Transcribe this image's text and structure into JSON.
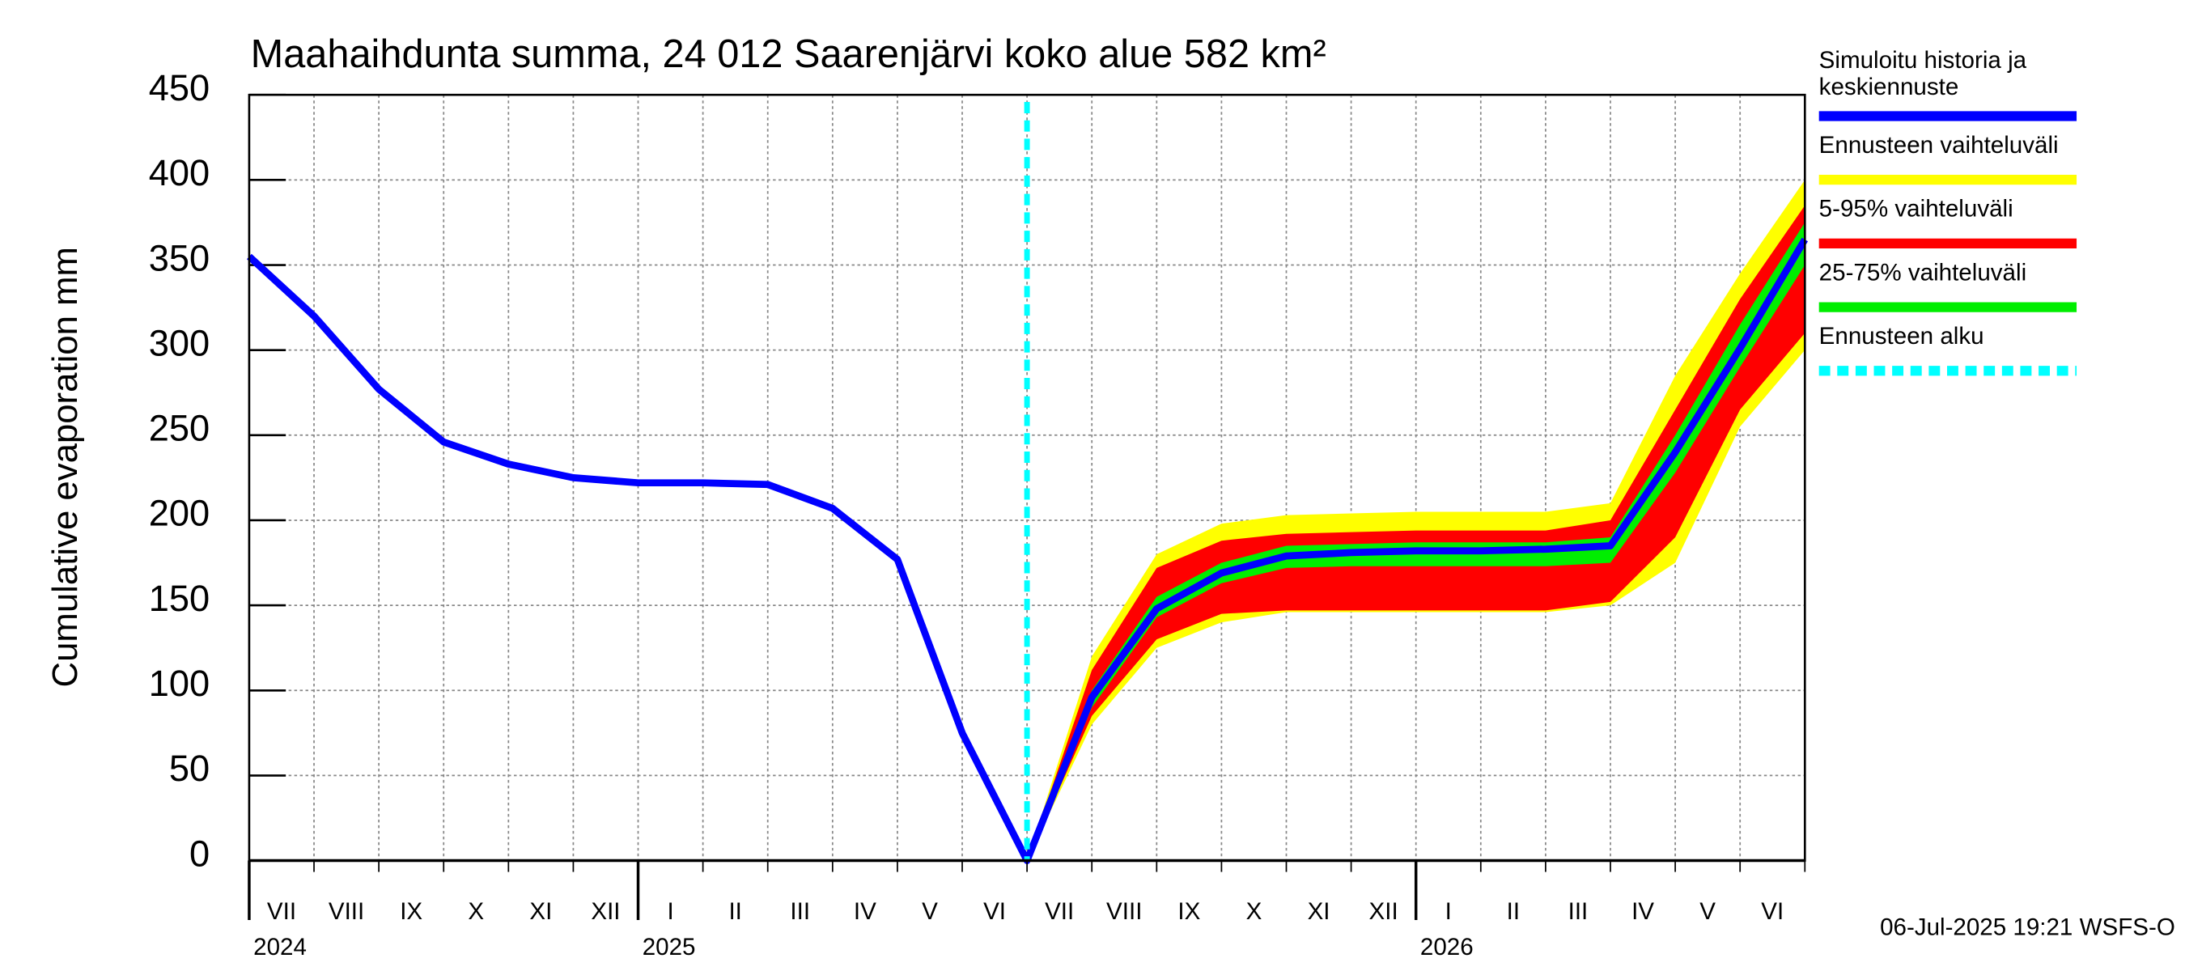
{
  "chart_data": {
    "type": "line",
    "title": "Maahaihdunta summa, 24 012 Saarenjärvi koko alue 582 km²",
    "y_label": "Cumulative evaporation   mm",
    "timestamp": "06-Jul-2025 19:21 WSFS-O",
    "x": [
      "2024-07",
      "2024-08",
      "2024-09",
      "2024-10",
      "2024-11",
      "2024-12",
      "2025-01",
      "2025-02",
      "2025-03",
      "2025-04",
      "2025-05",
      "2025-06",
      "2025-07",
      "2025-08",
      "2025-09",
      "2025-10",
      "2025-11",
      "2025-12",
      "2026-01",
      "2026-02",
      "2026-03",
      "2026-04",
      "2026-05",
      "2026-06",
      "2026-07"
    ],
    "xlim": [
      "2024-07",
      "2026-07"
    ],
    "month_labels": [
      "VII",
      "VIII",
      "IX",
      "X",
      "XI",
      "XII",
      "I",
      "II",
      "III",
      "IV",
      "V",
      "VI",
      "VII",
      "VIII",
      "IX",
      "X",
      "XI",
      "XII",
      "I",
      "II",
      "III",
      "IV",
      "V",
      "VI"
    ],
    "year_labels": [
      {
        "value": "2024-07",
        "label": "2024"
      },
      {
        "value": "2025-01",
        "label": "2025"
      },
      {
        "value": "2026-01",
        "label": "2026"
      }
    ],
    "ylim": [
      0,
      450
    ],
    "yticks": [
      0,
      50,
      100,
      150,
      200,
      250,
      300,
      350,
      400,
      450
    ],
    "grid": true,
    "series": [
      {
        "name": "Simuloitu historia ja keskiennuste",
        "color": "#0000ff",
        "values": [
          355,
          320,
          277,
          246,
          233,
          225,
          222,
          222,
          221,
          207,
          177,
          75,
          0,
          96,
          148,
          169,
          179,
          181,
          182,
          182,
          183,
          185,
          240,
          301,
          365
        ]
      },
      {
        "name": "Ennusteen vaihteluväli",
        "color": "#ffff00",
        "low": [
          null,
          null,
          null,
          null,
          null,
          null,
          null,
          null,
          null,
          null,
          null,
          null,
          0,
          80,
          125,
          140,
          146,
          146,
          146,
          146,
          146,
          150,
          175,
          255,
          300
        ],
        "high": [
          null,
          null,
          null,
          null,
          null,
          null,
          null,
          null,
          null,
          null,
          null,
          null,
          0,
          120,
          180,
          198,
          203,
          204,
          205,
          205,
          205,
          210,
          285,
          345,
          400
        ]
      },
      {
        "name": "5-95% vaihteluväli",
        "color": "#ff0000",
        "low": [
          null,
          null,
          null,
          null,
          null,
          null,
          null,
          null,
          null,
          null,
          null,
          null,
          0,
          85,
          130,
          145,
          147,
          147,
          147,
          147,
          147,
          152,
          190,
          265,
          310
        ],
        "high": [
          null,
          null,
          null,
          null,
          null,
          null,
          null,
          null,
          null,
          null,
          null,
          null,
          0,
          112,
          172,
          188,
          192,
          193,
          194,
          194,
          194,
          200,
          265,
          330,
          385
        ]
      },
      {
        "name": "25-75% vaihteluväli",
        "color": "#00ee00",
        "low": [
          null,
          null,
          null,
          null,
          null,
          null,
          null,
          null,
          null,
          null,
          null,
          null,
          0,
          90,
          143,
          163,
          172,
          173,
          173,
          173,
          173,
          175,
          228,
          290,
          350
        ],
        "high": [
          null,
          null,
          null,
          null,
          null,
          null,
          null,
          null,
          null,
          null,
          null,
          null,
          0,
          100,
          155,
          175,
          185,
          186,
          187,
          187,
          187,
          190,
          250,
          315,
          375
        ]
      }
    ],
    "forecast_start": {
      "name": "Ennusteen alku",
      "value": "2025-07",
      "color": "#00ffff"
    }
  }
}
